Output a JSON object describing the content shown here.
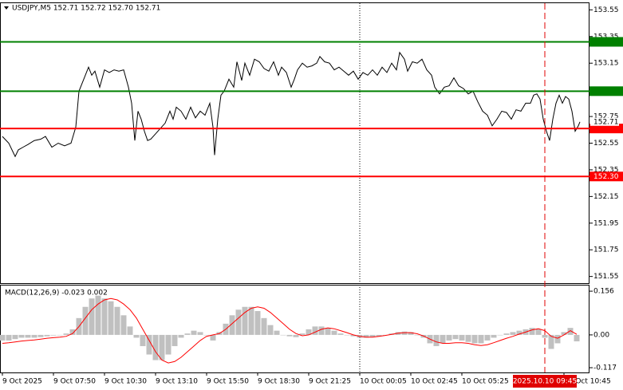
{
  "chart_data": [
    {
      "type": "line",
      "title": "USDJPY,M5  152.71 152.72 152.70 152.71",
      "x": [
        0,
        4,
        8,
        10,
        13,
        16,
        20,
        24,
        27,
        31,
        35,
        39,
        43,
        46,
        48,
        51,
        54,
        56,
        58,
        61,
        64,
        67,
        70,
        73,
        76,
        79,
        81,
        83,
        85,
        87,
        89,
        91,
        93,
        96,
        99,
        102,
        105,
        107,
        109,
        112,
        115,
        118,
        121,
        124,
        127,
        130,
        132,
        133,
        135,
        137,
        139,
        142,
        145,
        147,
        150,
        152,
        155,
        158,
        161,
        164,
        167,
        170,
        173,
        175,
        178,
        181,
        183,
        185,
        188,
        191,
        194,
        197,
        199,
        202,
        205,
        208,
        211,
        214,
        217,
        220,
        223,
        226,
        229,
        232,
        235,
        238,
        241,
        244,
        247,
        249,
        252,
        254,
        257,
        260,
        263,
        266,
        269,
        271,
        274,
        277,
        280,
        283,
        286,
        289,
        292,
        295,
        298,
        301,
        304,
        307,
        310,
        313,
        316,
        319,
        322,
        325,
        328,
        331,
        333,
        335,
        337,
        339,
        341,
        343,
        345,
        347,
        349,
        351,
        353,
        355,
        357,
        359,
        361,
        362
      ],
      "series": [
        {
          "color": "#000000",
          "values": [
            152.6,
            152.55,
            152.45,
            152.5,
            152.52,
            152.54,
            152.57,
            152.58,
            152.6,
            152.52,
            152.55,
            152.53,
            152.55,
            152.67,
            152.94,
            153.03,
            153.12,
            153.06,
            153.09,
            152.97,
            153.1,
            153.08,
            153.1,
            153.09,
            153.1,
            152.97,
            152.85,
            152.57,
            152.79,
            152.73,
            152.64,
            152.57,
            152.58,
            152.62,
            152.66,
            152.7,
            152.79,
            152.73,
            152.82,
            152.79,
            152.73,
            152.82,
            152.74,
            152.79,
            152.76,
            152.85,
            152.67,
            152.46,
            152.73,
            152.91,
            152.94,
            153.03,
            152.97,
            153.16,
            153.02,
            153.15,
            153.06,
            153.18,
            153.16,
            153.11,
            153.09,
            153.16,
            153.06,
            153.12,
            153.08,
            152.97,
            153.03,
            153.1,
            153.15,
            153.12,
            153.13,
            153.15,
            153.2,
            153.16,
            153.15,
            153.1,
            153.12,
            153.09,
            153.06,
            153.09,
            153.03,
            153.08,
            153.06,
            153.1,
            153.06,
            153.12,
            153.08,
            153.15,
            153.1,
            153.23,
            153.18,
            153.09,
            153.16,
            153.15,
            153.18,
            153.1,
            153.06,
            152.97,
            152.92,
            152.97,
            152.98,
            153.04,
            152.98,
            152.96,
            152.92,
            152.94,
            152.86,
            152.79,
            152.76,
            152.68,
            152.73,
            152.79,
            152.78,
            152.73,
            152.8,
            152.79,
            152.85,
            152.85,
            152.91,
            152.92,
            152.88,
            152.73,
            152.64,
            152.57,
            152.73,
            152.85,
            152.91,
            152.85,
            152.9,
            152.88,
            152.79,
            152.64,
            152.68,
            152.71
          ]
        }
      ],
      "xlim": [
        -1.5,
        368
      ],
      "ylim": [
        151.5,
        153.6
      ],
      "yticks": [
        153.55,
        153.35,
        153.15,
        152.95,
        152.75,
        152.55,
        152.35,
        152.15,
        151.95,
        151.75,
        151.55
      ],
      "levels": [
        {
          "value": 153.31,
          "color": "#008000"
        },
        {
          "value": 152.94,
          "color": "#008000"
        },
        {
          "value": 152.66,
          "color": "#ff0000"
        },
        {
          "value": 152.3,
          "label": "152.30",
          "color": "#ff0000"
        }
      ],
      "last_price": 152.71,
      "separators": [
        224
      ],
      "cursor": {
        "value": 340,
        "label": "2025.10.10 09:45"
      },
      "xticks": [
        {
          "value": 0,
          "label": "9 Oct 2025"
        },
        {
          "value": 32,
          "label": "9 Oct 07:50"
        },
        {
          "value": 64,
          "label": "9 Oct 10:30"
        },
        {
          "value": 96,
          "label": "9 Oct 13:10"
        },
        {
          "value": 128,
          "label": "9 Oct 15:50"
        },
        {
          "value": 160,
          "label": "9 Oct 18:30"
        },
        {
          "value": 192,
          "label": "9 Oct 21:25"
        },
        {
          "value": 224,
          "label": "10 Oct 00:05"
        },
        {
          "value": 256,
          "label": "10 Oct 02:45"
        },
        {
          "value": 288,
          "label": "10 Oct 05:25"
        },
        {
          "value": 352,
          "label": "10 Oct 10:45"
        }
      ]
    },
    {
      "type": "bar",
      "title": "MACD(12,26,9) -0.023 0.002",
      "x": [
        0,
        4,
        8,
        12,
        16,
        20,
        24,
        28,
        32,
        36,
        40,
        44,
        48,
        52,
        56,
        60,
        64,
        68,
        72,
        76,
        80,
        84,
        88,
        92,
        96,
        100,
        104,
        108,
        112,
        116,
        120,
        124,
        128,
        132,
        136,
        140,
        144,
        148,
        152,
        156,
        160,
        164,
        168,
        172,
        176,
        180,
        184,
        188,
        192,
        196,
        200,
        204,
        208,
        212,
        216,
        220,
        224,
        228,
        232,
        236,
        240,
        244,
        248,
        252,
        256,
        260,
        264,
        268,
        272,
        276,
        280,
        284,
        288,
        292,
        296,
        300,
        304,
        308,
        312,
        316,
        320,
        324,
        328,
        332,
        336,
        340,
        344,
        348,
        352,
        356,
        360
      ],
      "series": [
        {
          "type": "bar",
          "color": "#c0c0c0",
          "values": [
            -0.02,
            -0.02,
            -0.015,
            -0.01,
            -0.01,
            -0.01,
            -0.008,
            -0.005,
            -0.002,
            0.0,
            0.005,
            0.02,
            0.06,
            0.1,
            0.13,
            0.14,
            0.13,
            0.12,
            0.1,
            0.07,
            0.03,
            -0.01,
            -0.04,
            -0.07,
            -0.09,
            -0.09,
            -0.07,
            -0.04,
            -0.01,
            0.005,
            0.015,
            0.01,
            0.0,
            -0.02,
            0.01,
            0.04,
            0.07,
            0.09,
            0.1,
            0.1,
            0.085,
            0.06,
            0.035,
            0.015,
            0.0,
            -0.005,
            -0.008,
            0.005,
            0.02,
            0.03,
            0.03,
            0.025,
            0.015,
            0.005,
            0.0,
            -0.005,
            -0.01,
            -0.01,
            -0.008,
            -0.005,
            0.0,
            0.005,
            0.01,
            0.012,
            0.01,
            0.0,
            -0.01,
            -0.03,
            -0.04,
            -0.03,
            -0.02,
            -0.015,
            -0.02,
            -0.025,
            -0.03,
            -0.03,
            -0.02,
            -0.01,
            0.0,
            0.005,
            0.01,
            0.015,
            0.02,
            0.025,
            0.02,
            -0.01,
            -0.05,
            -0.03,
            0.01,
            0.025,
            -0.023
          ]
        },
        {
          "type": "line",
          "color": "#ff0000",
          "values": [
            -0.03,
            -0.028,
            -0.025,
            -0.022,
            -0.02,
            -0.018,
            -0.015,
            -0.012,
            -0.01,
            -0.008,
            -0.005,
            0.005,
            0.03,
            0.06,
            0.09,
            0.11,
            0.125,
            0.13,
            0.125,
            0.11,
            0.09,
            0.06,
            0.02,
            -0.02,
            -0.06,
            -0.09,
            -0.1,
            -0.095,
            -0.08,
            -0.06,
            -0.04,
            -0.02,
            -0.005,
            0.0,
            0.005,
            0.02,
            0.04,
            0.06,
            0.08,
            0.095,
            0.1,
            0.095,
            0.08,
            0.06,
            0.04,
            0.02,
            0.005,
            -0.003,
            0.0,
            0.01,
            0.02,
            0.025,
            0.022,
            0.015,
            0.008,
            0.0,
            -0.005,
            -0.008,
            -0.008,
            -0.005,
            -0.002,
            0.002,
            0.006,
            0.008,
            0.008,
            0.004,
            -0.004,
            -0.015,
            -0.025,
            -0.03,
            -0.03,
            -0.028,
            -0.028,
            -0.03,
            -0.035,
            -0.038,
            -0.035,
            -0.028,
            -0.02,
            -0.012,
            -0.005,
            0.003,
            0.01,
            0.018,
            0.022,
            0.015,
            -0.005,
            -0.012,
            0.0,
            0.015,
            0.002
          ]
        }
      ],
      "xlim": [
        -1.5,
        368
      ],
      "ylim": [
        -0.134,
        0.179
      ],
      "yticks": [
        0.156,
        {
          "value": 0,
          "label": "0.00"
        },
        -0.117
      ]
    }
  ]
}
